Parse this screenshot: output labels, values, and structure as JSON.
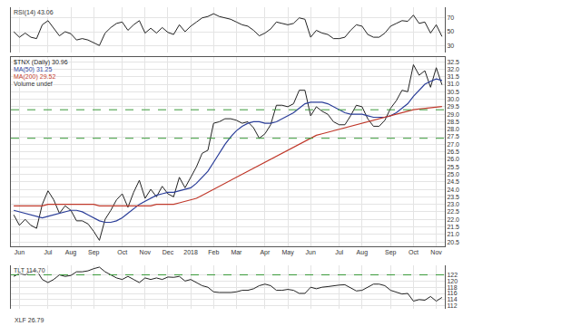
{
  "chart_data": [
    {
      "type": "line",
      "title": "RSI(14) 43.06",
      "color": "#222222",
      "grid": true,
      "tick_labels": "y",
      "categories": [
        null,
        "Jun",
        null,
        null,
        null,
        null,
        "Jul",
        null,
        null,
        null,
        "Aug",
        null,
        null,
        null,
        "Sep",
        null,
        null,
        null,
        null,
        "Oct",
        null,
        null,
        null,
        "Nov",
        null,
        null,
        null,
        "Dec",
        null,
        null,
        null,
        "2018",
        null,
        null,
        null,
        "Feb",
        null,
        null,
        null,
        "Mar",
        null,
        null,
        null,
        null,
        "Apr",
        null,
        null,
        null,
        "May",
        null,
        null,
        null,
        "Jun",
        null,
        null,
        null,
        null,
        "Jul",
        null,
        null,
        null,
        "Aug",
        null,
        null,
        null,
        null,
        "Sep",
        null,
        null,
        null,
        "Oct",
        null,
        null,
        null,
        "Nov",
        null
      ],
      "values": [
        50,
        42,
        48,
        42,
        40,
        60,
        66,
        55,
        44,
        50,
        47,
        38,
        40,
        38,
        34,
        30,
        48,
        56,
        62,
        64,
        52,
        60,
        66,
        48,
        55,
        48,
        56,
        49,
        46,
        60,
        50,
        58,
        64,
        70,
        72,
        76,
        72,
        70,
        68,
        64,
        60,
        58,
        52,
        44,
        48,
        54,
        64,
        62,
        60,
        62,
        70,
        68,
        42,
        52,
        48,
        46,
        40,
        40,
        42,
        52,
        60,
        58,
        46,
        42,
        42,
        48,
        58,
        62,
        66,
        65,
        74,
        62,
        64,
        48,
        60,
        43.06
      ],
      "ylim": [
        20,
        85
      ],
      "yticks": [
        30,
        50,
        70
      ]
    },
    {
      "type": "line",
      "grid": true,
      "categories": [
        null,
        "Jun",
        null,
        null,
        null,
        null,
        "Jul",
        null,
        null,
        null,
        "Aug",
        null,
        null,
        null,
        "Sep",
        null,
        null,
        null,
        null,
        "Oct",
        null,
        null,
        null,
        "Nov",
        null,
        null,
        null,
        "Dec",
        null,
        null,
        null,
        "2018",
        null,
        null,
        null,
        "Feb",
        null,
        null,
        null,
        "Mar",
        null,
        null,
        null,
        null,
        "Apr",
        null,
        null,
        null,
        "May",
        null,
        null,
        null,
        "Jun",
        null,
        null,
        null,
        null,
        "Jul",
        null,
        null,
        null,
        "Aug",
        null,
        null,
        null,
        null,
        "Sep",
        null,
        null,
        null,
        "Oct",
        null,
        null,
        null,
        "Nov",
        null
      ],
      "series": [
        {
          "name": "$TNX (Daily) 30.96",
          "color": "#222222",
          "values": [
            22.3,
            21.6,
            22.0,
            21.6,
            21.4,
            23.0,
            23.9,
            23.3,
            22.4,
            22.9,
            22.6,
            21.9,
            21.9,
            21.7,
            21.2,
            20.6,
            22.0,
            22.6,
            23.3,
            23.7,
            22.8,
            23.8,
            24.6,
            23.4,
            24.0,
            23.5,
            24.2,
            23.7,
            23.5,
            24.8,
            24.1,
            24.8,
            25.5,
            26.4,
            26.6,
            28.4,
            28.5,
            28.7,
            28.7,
            28.6,
            28.4,
            28.5,
            28.1,
            27.4,
            27.7,
            28.3,
            29.6,
            29.6,
            29.5,
            29.7,
            30.6,
            30.6,
            28.9,
            29.5,
            29.2,
            29.0,
            28.5,
            28.3,
            28.3,
            28.9,
            29.6,
            29.5,
            28.7,
            28.2,
            28.2,
            28.6,
            29.4,
            29.9,
            30.6,
            30.5,
            32.3,
            31.6,
            31.9,
            30.8,
            32.1,
            30.96
          ]
        },
        {
          "name": "MA(50) 31.25",
          "color": "#2b3e99",
          "values": [
            22.6,
            22.5,
            22.4,
            22.3,
            22.2,
            22.1,
            22.2,
            22.3,
            22.4,
            22.5,
            22.6,
            22.6,
            22.5,
            22.3,
            22.1,
            21.9,
            21.8,
            21.8,
            21.9,
            22.1,
            22.4,
            22.7,
            23.0,
            23.2,
            23.4,
            23.6,
            23.7,
            23.8,
            23.8,
            23.9,
            24.0,
            24.1,
            24.4,
            24.8,
            25.2,
            25.8,
            26.4,
            27.0,
            27.5,
            27.9,
            28.2,
            28.4,
            28.5,
            28.5,
            28.4,
            28.4,
            28.5,
            28.7,
            28.9,
            29.1,
            29.4,
            29.7,
            29.8,
            29.8,
            29.8,
            29.7,
            29.5,
            29.3,
            29.1,
            29.0,
            29.0,
            29.0,
            28.9,
            28.8,
            28.8,
            28.8,
            28.9,
            29.1,
            29.4,
            29.7,
            30.2,
            30.6,
            31.0,
            31.2,
            31.35,
            31.25
          ]
        },
        {
          "name": "MA(200) 29.52",
          "color": "#c0392b",
          "values": [
            22.9,
            22.9,
            22.9,
            22.9,
            22.9,
            22.9,
            23.0,
            23.0,
            23.0,
            23.0,
            23.0,
            23.0,
            23.0,
            23.0,
            23.0,
            22.9,
            22.9,
            22.9,
            22.9,
            22.9,
            22.9,
            22.9,
            22.9,
            22.9,
            22.9,
            23.0,
            23.0,
            23.0,
            23.0,
            23.1,
            23.2,
            23.3,
            23.4,
            23.6,
            23.8,
            24.0,
            24.2,
            24.4,
            24.6,
            24.8,
            25.0,
            25.2,
            25.4,
            25.6,
            25.8,
            26.0,
            26.2,
            26.4,
            26.6,
            26.8,
            27.0,
            27.2,
            27.4,
            27.6,
            27.7,
            27.8,
            27.9,
            28.0,
            28.1,
            28.2,
            28.3,
            28.4,
            28.5,
            28.6,
            28.7,
            28.8,
            28.9,
            29.0,
            29.1,
            29.2,
            29.3,
            29.35,
            29.4,
            29.45,
            29.5,
            29.52
          ]
        }
      ],
      "annotations": [
        "Volume undef"
      ],
      "hlines": [
        29.3,
        27.4
      ],
      "ylim": [
        20.2,
        32.8
      ],
      "yticks": [
        20.5,
        {
          "value": 21,
          "label": "21.0"
        },
        21.5,
        {
          "value": 22,
          "label": "22.0"
        },
        22.5,
        {
          "value": 23,
          "label": "23.0"
        },
        23.5,
        {
          "value": 24,
          "label": "24.0"
        },
        24.5,
        {
          "value": 25,
          "label": "25.0"
        },
        25.5,
        {
          "value": 26,
          "label": "26.0"
        },
        26.5,
        {
          "value": 27,
          "label": "27.0"
        },
        27.5,
        {
          "value": 28,
          "label": "28.0"
        },
        28.5,
        {
          "value": 29,
          "label": "29.0"
        },
        29.5,
        {
          "value": 30,
          "label": "30.0"
        },
        30.5,
        {
          "value": 31,
          "label": "31.0"
        },
        31.5,
        {
          "value": 32,
          "label": "32.0"
        },
        32.5
      ]
    },
    {
      "type": "line",
      "title": "TLT 114.70",
      "color": "#222222",
      "grid": true,
      "tick_labels": "y",
      "categories": [
        null,
        "Jun",
        null,
        null,
        null,
        null,
        "Jul",
        null,
        null,
        null,
        "Aug",
        null,
        null,
        null,
        "Sep",
        null,
        null,
        null,
        null,
        "Oct",
        null,
        null,
        null,
        "Nov",
        null,
        null,
        null,
        "Dec",
        null,
        null,
        null,
        "2018",
        null,
        null,
        null,
        "Feb",
        null,
        null,
        null,
        "Mar",
        null,
        null,
        null,
        null,
        "Apr",
        null,
        null,
        null,
        "May",
        null,
        null,
        null,
        "Jun",
        null,
        null,
        null,
        null,
        "Jul",
        null,
        null,
        null,
        "Aug",
        null,
        null,
        null,
        null,
        "Sep",
        null,
        null,
        null,
        "Oct",
        null,
        null,
        null,
        "Nov",
        null
      ],
      "values": [
        121.5,
        122.5,
        122,
        123,
        123.5,
        120.5,
        119.5,
        120.5,
        122,
        121.5,
        121.8,
        123,
        123,
        123.3,
        124,
        124.5,
        123,
        122,
        121,
        120.5,
        121.5,
        120.5,
        119.5,
        121,
        120.5,
        121,
        120.5,
        121.3,
        121.2,
        121.5,
        120,
        120.5,
        119.5,
        118.5,
        118,
        116.5,
        116.3,
        116.2,
        116.3,
        116.5,
        117,
        117,
        117.5,
        118.5,
        119,
        118.5,
        117,
        117,
        117.3,
        117,
        116,
        116,
        118,
        117.5,
        118,
        118.2,
        118.5,
        118.7,
        118.8,
        117.8,
        116.8,
        117,
        118,
        119,
        119,
        118.5,
        117,
        116.5,
        115.8,
        116,
        113.5,
        114,
        113.8,
        115,
        113.5,
        114.7
      ],
      "hlines": [
        122
      ],
      "annotations": [
        "XLF 26.79"
      ],
      "ylim": [
        111,
        125
      ],
      "yticks": [
        112,
        114,
        116,
        118,
        120,
        122
      ]
    }
  ]
}
